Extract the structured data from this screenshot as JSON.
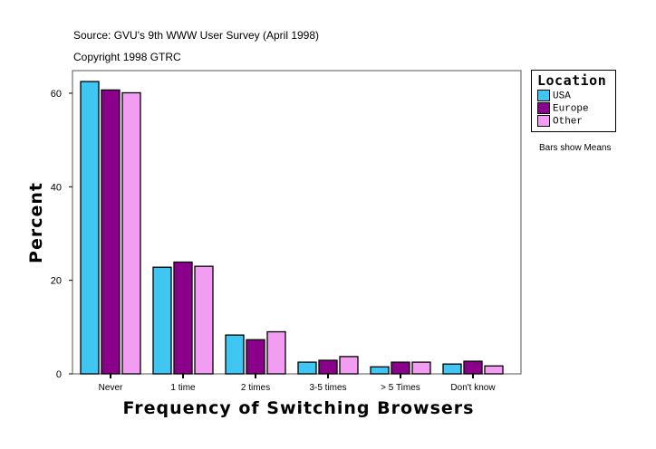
{
  "header": {
    "source": "Source: GVU's 9th WWW User Survey (April 1998)",
    "copyright": "Copyright 1998 GTRC"
  },
  "note": "Bars show Means",
  "chart_data": {
    "type": "bar",
    "xlabel": "Frequency of Switching Browsers",
    "ylabel": "Percent",
    "ylim": [
      0,
      65
    ],
    "yticks": [
      0,
      20,
      40,
      60
    ],
    "grid": false,
    "legend_position": "right",
    "legend_title": "Location",
    "categories": [
      "Never",
      "1 time",
      "2 times",
      "3-5 times",
      "> 5  Times",
      "Don't know"
    ],
    "series": [
      {
        "name": "USA",
        "color": "#3FC6F2",
        "values": [
          62.5,
          22.8,
          8.3,
          2.5,
          1.5,
          2.1
        ]
      },
      {
        "name": "Europe",
        "color": "#8B008B",
        "values": [
          60.7,
          23.9,
          7.3,
          2.9,
          2.5,
          2.7
        ]
      },
      {
        "name": "Other",
        "color": "#F29CF2",
        "values": [
          60.1,
          23.0,
          9.0,
          3.7,
          2.5,
          1.7
        ]
      }
    ]
  }
}
